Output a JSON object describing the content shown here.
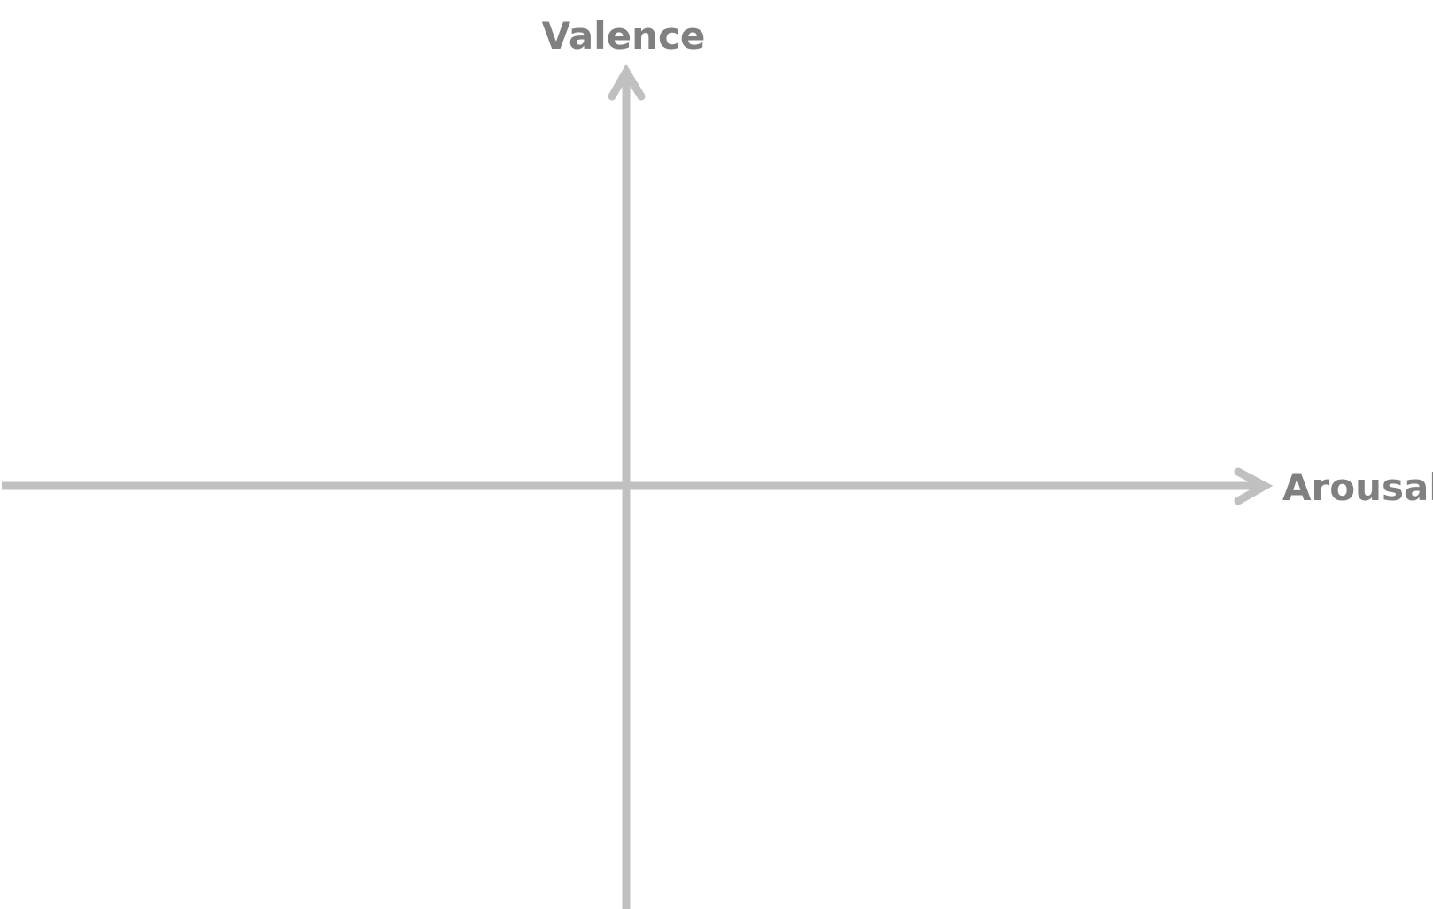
{
  "diagram": {
    "type": "two-axis-plane",
    "y_axis": {
      "label": "Valence"
    },
    "x_axis": {
      "label": "Arousal"
    },
    "colors": {
      "axis": "#c0c0c0",
      "label": "#808080",
      "background": "#ffffff"
    }
  }
}
